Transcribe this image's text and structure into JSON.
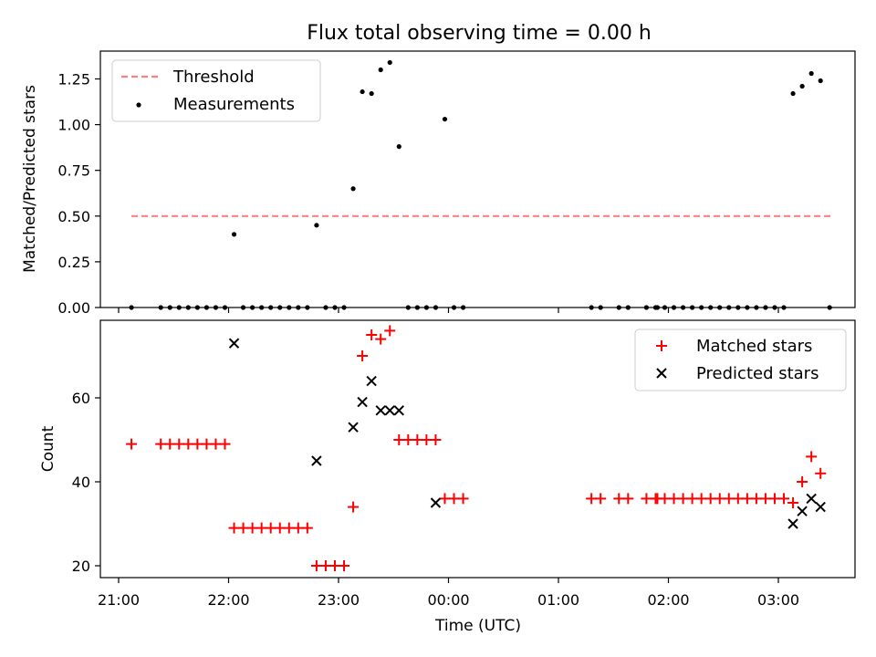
{
  "chart_data": [
    {
      "type": "scatter",
      "title": "Flux total observing time = 0.00 h",
      "xlabel": "",
      "ylabel": "Matched/Predicted stars",
      "ylim": [
        0,
        1.4
      ],
      "xlim": [
        "20:50",
        "03:45"
      ],
      "grid": false,
      "legend_position": "top-left",
      "yticks": [
        0.0,
        0.25,
        0.5,
        0.75,
        1.0,
        1.25
      ],
      "ytick_labels": [
        "0.00",
        "0.25",
        "0.50",
        "0.75",
        "1.00",
        "1.25"
      ],
      "xtick_labels_shown": false,
      "series": [
        {
          "name": "Threshold",
          "kind": "dashed-line",
          "color": "#ff7f7f",
          "x": [
            "21:07",
            "03:30"
          ],
          "y": [
            0.5,
            0.5
          ]
        },
        {
          "name": "Measurements",
          "kind": "dots",
          "color": "#000000",
          "x": [
            "21:07",
            "21:23",
            "21:28",
            "21:33",
            "21:38",
            "21:43",
            "21:48",
            "21:53",
            "21:58",
            "22:03",
            "22:08",
            "22:13",
            "22:18",
            "22:23",
            "22:28",
            "22:33",
            "22:38",
            "22:43",
            "22:48",
            "22:53",
            "22:58",
            "23:03",
            "23:08",
            "23:13",
            "23:18",
            "23:23",
            "23:28",
            "23:33",
            "23:38",
            "23:43",
            "23:48",
            "23:53",
            "23:58",
            "00:03",
            "00:08",
            "01:18",
            "01:23",
            "01:33",
            "01:38",
            "01:48",
            "01:53",
            "01:54",
            "01:58",
            "02:03",
            "02:08",
            "02:13",
            "02:18",
            "02:23",
            "02:28",
            "02:33",
            "02:38",
            "02:43",
            "02:48",
            "02:53",
            "02:58",
            "03:03",
            "03:08",
            "03:13",
            "03:18",
            "03:23",
            "03:28"
          ],
          "y": [
            0,
            0,
            0,
            0,
            0,
            0,
            0,
            0,
            0,
            0.4,
            0,
            0,
            0,
            0,
            0,
            0,
            0,
            0,
            0.45,
            0,
            0,
            0,
            0.65,
            1.18,
            1.17,
            1.3,
            1.34,
            0.88,
            0,
            0,
            0,
            0,
            1.03,
            0,
            0,
            0,
            0,
            0,
            0,
            0,
            0,
            0,
            0,
            0,
            0,
            0,
            0,
            0,
            0,
            0,
            0,
            0,
            0,
            0,
            0,
            0,
            1.17,
            1.21,
            1.28,
            1.24,
            0
          ]
        }
      ]
    },
    {
      "type": "scatter",
      "title": "",
      "xlabel": "Time (UTC)",
      "ylabel": "Count",
      "ylim": [
        17.5,
        78
      ],
      "xlim": [
        "20:50",
        "03:45"
      ],
      "grid": false,
      "legend_position": "top-right",
      "yticks": [
        20,
        40,
        60
      ],
      "ytick_labels": [
        "20",
        "40",
        "60"
      ],
      "xticks": [
        "21:00",
        "22:00",
        "23:00",
        "00:00",
        "01:00",
        "02:00",
        "03:00"
      ],
      "xtick_labels": [
        "21:00",
        "22:00",
        "23:00",
        "00:00",
        "01:00",
        "02:00",
        "03:00"
      ],
      "series": [
        {
          "name": "Matched stars",
          "marker": "plus",
          "color": "#ff0000",
          "x": [
            "21:07",
            "21:23",
            "21:28",
            "21:33",
            "21:38",
            "21:43",
            "21:48",
            "21:53",
            "21:58",
            "22:03",
            "22:08",
            "22:13",
            "22:18",
            "22:23",
            "22:28",
            "22:33",
            "22:38",
            "22:43",
            "22:48",
            "22:53",
            "22:58",
            "23:03",
            "23:08",
            "23:13",
            "23:18",
            "23:23",
            "23:28",
            "23:33",
            "23:38",
            "23:43",
            "23:48",
            "23:53",
            "23:58",
            "00:03",
            "00:08",
            "01:18",
            "01:23",
            "01:33",
            "01:38",
            "01:48",
            "01:53",
            "01:54",
            "01:58",
            "02:03",
            "02:08",
            "02:13",
            "02:18",
            "02:23",
            "02:28",
            "02:33",
            "02:38",
            "02:43",
            "02:48",
            "02:53",
            "02:58",
            "03:03",
            "03:08",
            "03:13",
            "03:18",
            "03:23",
            "03:28"
          ],
          "y": [
            49,
            49,
            49,
            49,
            49,
            49,
            49,
            49,
            49,
            29,
            29,
            29,
            29,
            29,
            29,
            29,
            29,
            29,
            20,
            20,
            20,
            20,
            34,
            70,
            75,
            74,
            76,
            50,
            50,
            50,
            50,
            50,
            36,
            36,
            36,
            36,
            36,
            36,
            36,
            36,
            36,
            36,
            36,
            36,
            36,
            36,
            36,
            36,
            36,
            36,
            36,
            36,
            36,
            36,
            36,
            36,
            35,
            40,
            46,
            42,
            null
          ]
        },
        {
          "name": "Predicted stars",
          "marker": "x",
          "color": "#000000",
          "x": [
            "22:03",
            "22:48",
            "23:08",
            "23:13",
            "23:18",
            "23:23",
            "23:28",
            "23:33",
            "23:53",
            "03:08",
            "03:13",
            "03:18",
            "03:23"
          ],
          "y": [
            73,
            45,
            53,
            59,
            64,
            57,
            57,
            57,
            35,
            30,
            33,
            36,
            34
          ]
        }
      ]
    }
  ]
}
